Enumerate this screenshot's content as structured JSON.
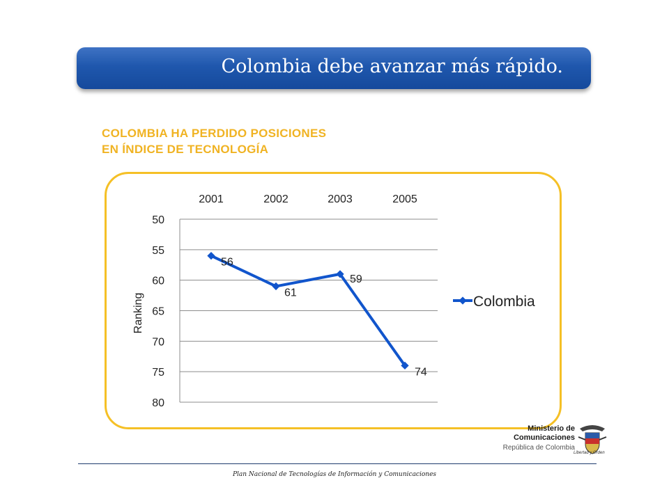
{
  "slide": {
    "title": "Colombia debe avanzar más rápido.",
    "subtitle_line1": "COLOMBIA HA PERDIDO POSICIONES",
    "subtitle_line2": "EN ÍNDICE DE TECNOLOGÍA",
    "footer": "Plan Nacional de Tecnologías de Información y Comunicaciones",
    "ministry_line1": "Ministerio de",
    "ministry_line2": "Comunicaciones",
    "ministry_line3": "República de Colombia",
    "seal_motto": "Libertad y Orden",
    "seal_icon": "coat-of-arms-icon"
  },
  "colors": {
    "banner": "#1f57ad",
    "subtitle": "#f0b323",
    "frame": "#f5c026",
    "series": "#1155cc"
  },
  "chart_data": {
    "type": "line",
    "categories": [
      "2001",
      "2002",
      "2003",
      "2005"
    ],
    "series": [
      {
        "name": "Colombia",
        "values": [
          56,
          61,
          59,
          74
        ]
      }
    ],
    "data_labels": [
      "56",
      "61",
      "59",
      "74"
    ],
    "ylabel": "Ranking",
    "ylim": [
      50,
      80
    ],
    "y_inverted": true,
    "yticks": [
      50,
      55,
      60,
      65,
      70,
      75,
      80
    ],
    "ytick_labels": [
      "50",
      "55",
      "60",
      "65",
      "70",
      "75",
      "80"
    ],
    "x_axis_position": "top",
    "grid": true,
    "legend": "right"
  }
}
